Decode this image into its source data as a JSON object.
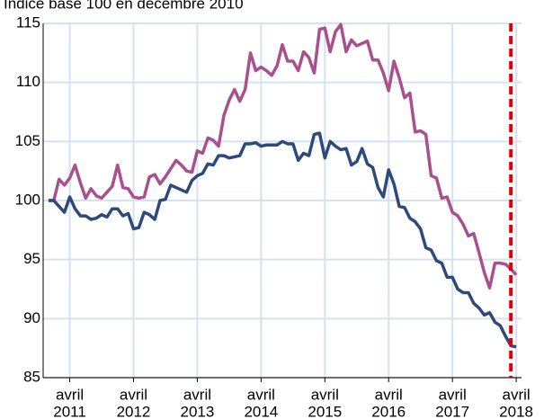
{
  "chart_data": {
    "type": "line",
    "title": "Indice base 100 en décembre 2010",
    "x": [
      "2010-12",
      "2011-01",
      "2011-02",
      "2011-03",
      "2011-04",
      "2011-05",
      "2011-06",
      "2011-07",
      "2011-08",
      "2011-09",
      "2011-10",
      "2011-11",
      "2011-12",
      "2012-01",
      "2012-02",
      "2012-03",
      "2012-04",
      "2012-05",
      "2012-06",
      "2012-07",
      "2012-08",
      "2012-09",
      "2012-10",
      "2012-11",
      "2012-12",
      "2013-01",
      "2013-02",
      "2013-03",
      "2013-04",
      "2013-05",
      "2013-06",
      "2013-07",
      "2013-08",
      "2013-09",
      "2013-10",
      "2013-11",
      "2013-12",
      "2014-01",
      "2014-02",
      "2014-03",
      "2014-04",
      "2014-05",
      "2014-06",
      "2014-07",
      "2014-08",
      "2014-09",
      "2014-10",
      "2014-11",
      "2014-12",
      "2015-01",
      "2015-02",
      "2015-03",
      "2015-04",
      "2015-05",
      "2015-06",
      "2015-07",
      "2015-08",
      "2015-09",
      "2015-10",
      "2015-11",
      "2015-12",
      "2016-01",
      "2016-02",
      "2016-03",
      "2016-04",
      "2016-05",
      "2016-06",
      "2016-07",
      "2016-08",
      "2016-09",
      "2016-10",
      "2016-11",
      "2016-12",
      "2017-01",
      "2017-02",
      "2017-03",
      "2017-04",
      "2017-05",
      "2017-06",
      "2017-07",
      "2017-08",
      "2017-09",
      "2017-10",
      "2017-11",
      "2017-12",
      "2018-01",
      "2018-02",
      "2018-03",
      "2018-04"
    ],
    "series": [
      {
        "color": "#a9508f",
        "values": [
          100,
          100.0,
          101.8,
          101.3,
          101.9,
          103.0,
          101.5,
          100.2,
          101.0,
          100.4,
          100.2,
          100.7,
          101.2,
          103.0,
          101.1,
          101.0,
          100.3,
          100.2,
          100.3,
          102.0,
          102.2,
          101.4,
          102.0,
          102.7,
          103.4,
          103.0,
          102.5,
          102.4,
          104.2,
          104.0,
          105.3,
          105.1,
          104.6,
          107.2,
          108.5,
          109.4,
          108.4,
          109.4,
          112.5,
          111.0,
          111.3,
          111.0,
          110.6,
          111.4,
          113.2,
          111.8,
          111.8,
          111.0,
          112.6,
          112.1,
          110.8,
          114.5,
          114.6,
          112.6,
          114.3,
          114.9,
          112.6,
          113.6,
          113.1,
          113.3,
          113.5,
          111.9,
          111.9,
          110.8,
          109.3,
          111.8,
          110.4,
          108.7,
          109.1,
          105.8,
          105.9,
          105.6,
          102.1,
          101.9,
          100.2,
          100.3,
          99.0,
          98.7,
          98.0,
          97.0,
          97.2,
          95.6,
          93.9,
          92.6,
          94.7,
          94.7,
          94.6,
          94.2,
          93.7
        ]
      },
      {
        "color": "#2e4a7c",
        "values": [
          100,
          100.0,
          99.5,
          99.0,
          100.3,
          99.3,
          98.7,
          98.7,
          98.4,
          98.5,
          98.8,
          98.6,
          99.3,
          99.3,
          98.7,
          98.9,
          97.6,
          97.7,
          99.0,
          98.8,
          98.4,
          100.0,
          100.1,
          101.3,
          101.1,
          100.9,
          100.7,
          101.7,
          102.1,
          102.3,
          103.1,
          103.0,
          103.8,
          103.8,
          103.6,
          103.7,
          103.8,
          104.8,
          104.8,
          104.9,
          104.6,
          104.7,
          104.7,
          104.7,
          105.0,
          104.8,
          104.8,
          103.4,
          104.0,
          103.8,
          105.6,
          105.7,
          103.6,
          105.0,
          104.6,
          104.3,
          104.4,
          103.0,
          103.3,
          104.4,
          103.1,
          102.8,
          101.1,
          100.3,
          102.6,
          101.4,
          99.5,
          99.4,
          98.5,
          98.2,
          97.6,
          96.0,
          95.8,
          94.9,
          94.7,
          93.5,
          93.5,
          92.5,
          92.2,
          92.2,
          91.3,
          90.9,
          90.3,
          90.5,
          89.7,
          89.4,
          88.5,
          87.7,
          87.6
        ]
      }
    ],
    "xlim": [
      "2010-11",
      "2018-05"
    ],
    "xticks": [
      {
        "value": "2011-04",
        "month": "avril",
        "year": "2011"
      },
      {
        "value": "2012-04",
        "month": "avril",
        "year": "2012"
      },
      {
        "value": "2013-04",
        "month": "avril",
        "year": "2013"
      },
      {
        "value": "2014-04",
        "month": "avril",
        "year": "2014"
      },
      {
        "value": "2015-04",
        "month": "avril",
        "year": "2015"
      },
      {
        "value": "2016-04",
        "month": "avril",
        "year": "2016"
      },
      {
        "value": "2017-04",
        "month": "avril",
        "year": "2017"
      },
      {
        "value": "2018-04",
        "month": "avril",
        "year": "2018"
      }
    ],
    "ylim": [
      85,
      115
    ],
    "yticks": [
      85,
      90,
      95,
      100,
      105,
      110,
      115
    ],
    "grid": true,
    "vline": {
      "x": "2018-03",
      "color": "#e0000c"
    }
  }
}
